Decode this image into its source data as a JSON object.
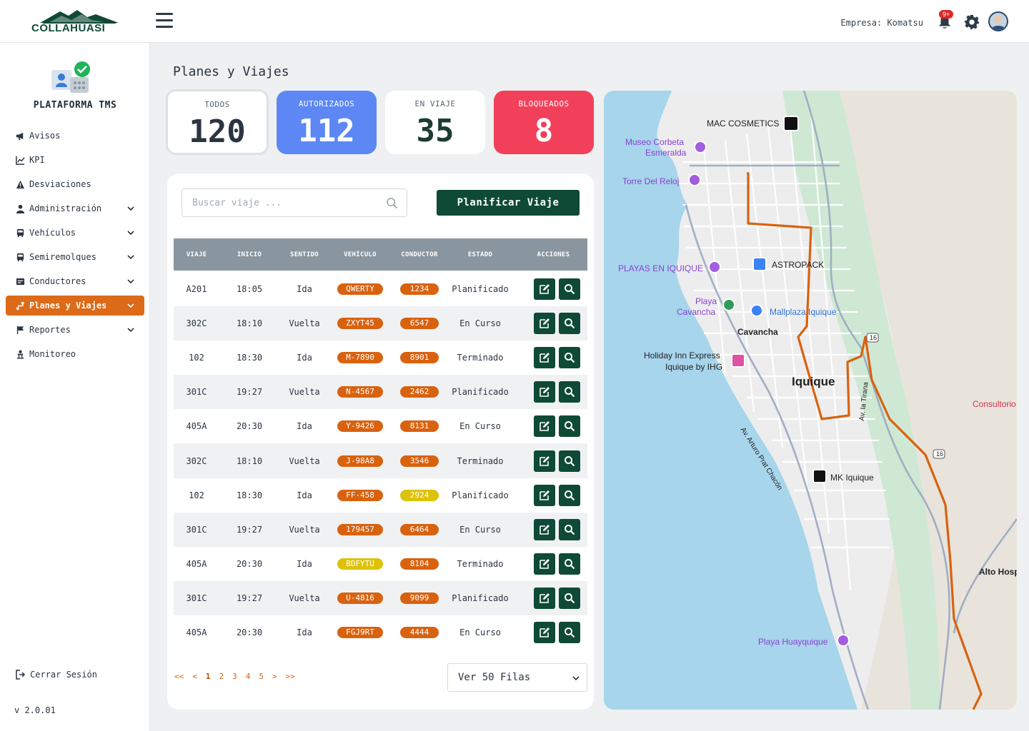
{
  "header": {
    "brand": "COLLAHUASI",
    "company_label": "Empresa: Komatsu",
    "notif_count": "9+"
  },
  "sidebar": {
    "title": "PLATAFORMA TMS",
    "items": [
      {
        "label": "Avisos",
        "icon": "megaphone-icon",
        "expandable": false,
        "active": false
      },
      {
        "label": "KPI",
        "icon": "chart-line-icon",
        "expandable": false,
        "active": false
      },
      {
        "label": "Desviaciones",
        "icon": "warning-icon",
        "expandable": false,
        "active": false
      },
      {
        "label": "Administración",
        "icon": "user-icon",
        "expandable": true,
        "active": false
      },
      {
        "label": "Vehículos",
        "icon": "bus-icon",
        "expandable": true,
        "active": false
      },
      {
        "label": "Semiremolques",
        "icon": "truck-icon",
        "expandable": true,
        "active": false
      },
      {
        "label": "Conductores",
        "icon": "id-card-icon",
        "expandable": true,
        "active": false
      },
      {
        "label": "Planes y Viajes",
        "icon": "route-icon",
        "expandable": true,
        "active": true
      },
      {
        "label": "Reportes",
        "icon": "flag-icon",
        "expandable": true,
        "active": false
      },
      {
        "label": "Monitoreo",
        "icon": "person-monitor-icon",
        "expandable": false,
        "active": false
      }
    ],
    "logout": "Cerrar Sesión",
    "version": "v 2.0.01"
  },
  "page": {
    "title": "Planes y Viajes"
  },
  "stats": {
    "todos": {
      "label": "TODOS",
      "value": "120"
    },
    "autorizados": {
      "label": "AUTORIZADOS",
      "value": "112"
    },
    "en_viaje": {
      "label": "EN VIAJE",
      "value": "35"
    },
    "bloqueados": {
      "label": "BLOQUEADOS",
      "value": "8"
    }
  },
  "search": {
    "placeholder": "Buscar viaje ..."
  },
  "plan_button": "Planificar Viaje",
  "table": {
    "headers": [
      "VIAJE",
      "INICIO",
      "SENTIDO",
      "VEHÍCULO",
      "CONDUCTOR",
      "ESTADO",
      "ACCIONES"
    ],
    "rows": [
      {
        "viaje": "A201",
        "inicio": "18:05",
        "sentido": "Ida",
        "vehiculo": "QWERTY",
        "conductor": "1234",
        "estado": "Planificado",
        "veh_color": "orange",
        "cond_color": "orange"
      },
      {
        "viaje": "302C",
        "inicio": "18:10",
        "sentido": "Vuelta",
        "vehiculo": "ZXYT45",
        "conductor": "6547",
        "estado": "En Curso",
        "veh_color": "orange",
        "cond_color": "orange"
      },
      {
        "viaje": "102",
        "inicio": "18:30",
        "sentido": "Ida",
        "vehiculo": "M-7890",
        "conductor": "8901",
        "estado": "Terminado",
        "veh_color": "orange",
        "cond_color": "orange"
      },
      {
        "viaje": "301C",
        "inicio": "19:27",
        "sentido": "Vuelta",
        "vehiculo": "N-4567",
        "conductor": "2462",
        "estado": "Planificado",
        "veh_color": "orange",
        "cond_color": "orange"
      },
      {
        "viaje": "405A",
        "inicio": "20:30",
        "sentido": "Ida",
        "vehiculo": "Y-9426",
        "conductor": "8131",
        "estado": "En Curso",
        "veh_color": "orange",
        "cond_color": "orange"
      },
      {
        "viaje": "302C",
        "inicio": "18:10",
        "sentido": "Vuelta",
        "vehiculo": "J-98A8",
        "conductor": "3546",
        "estado": "Terminado",
        "veh_color": "orange",
        "cond_color": "orange"
      },
      {
        "viaje": "102",
        "inicio": "18:30",
        "sentido": "Ida",
        "vehiculo": "FF-458",
        "conductor": "2924",
        "estado": "Planificado",
        "veh_color": "orange",
        "cond_color": "yellow"
      },
      {
        "viaje": "301C",
        "inicio": "19:27",
        "sentido": "Vuelta",
        "vehiculo": "179457",
        "conductor": "6464",
        "estado": "En Curso",
        "veh_color": "orange",
        "cond_color": "orange"
      },
      {
        "viaje": "405A",
        "inicio": "20:30",
        "sentido": "Ida",
        "vehiculo": "BDFYTU",
        "conductor": "8104",
        "estado": "Terminado",
        "veh_color": "yellow",
        "cond_color": "orange"
      },
      {
        "viaje": "301C",
        "inicio": "19:27",
        "sentido": "Vuelta",
        "vehiculo": "U-4816",
        "conductor": "9099",
        "estado": "Planificado",
        "veh_color": "orange",
        "cond_color": "orange"
      },
      {
        "viaje": "405A",
        "inicio": "20:30",
        "sentido": "Ida",
        "vehiculo": "FGJ9RT",
        "conductor": "4444",
        "estado": "En Curso",
        "veh_color": "orange",
        "cond_color": "orange"
      }
    ]
  },
  "pagination": {
    "first": "<<",
    "prev": "<",
    "pages": [
      "1",
      "2",
      "3",
      "4",
      "5"
    ],
    "current": "1",
    "next": ">",
    "last": ">>"
  },
  "rows_per_page": "Ver 50 Filas",
  "map": {
    "labels": {
      "mac": "MAC COSMETICS",
      "museo1": "Museo Corbeta",
      "museo2": "Esmeralda",
      "torre": "Torre Del Reloj",
      "playas": "PLAYAS EN IQUIQUE",
      "astropack": "ASTROPACK",
      "playa1": "Playa",
      "playa2": "Cavancha",
      "mallplaza": "Mallplaza Iquique",
      "cavancha": "Cavancha",
      "holiday1": "Holiday Inn Express",
      "holiday2": "Iquique by IHG",
      "iquique": "Iquique",
      "consultorio": "Consultorio",
      "av_arturo": "Av. Arturo Prat Chacón",
      "av_tirana": "Av. la Tirana",
      "mk": "MK Iquique",
      "alto": "Alto Hosp",
      "huayquique": "Playa Huayquique",
      "route16": "16"
    },
    "colors": {
      "route": "#d9620f",
      "water": "#a7d5ec",
      "park": "#cfe8d4"
    }
  },
  "colors": {
    "accent": "#dc6a18",
    "primary_dark": "#0e4a35",
    "authorized": "#5c87f5",
    "blocked": "#f2405a",
    "yellow_pill": "#ddc20a"
  }
}
